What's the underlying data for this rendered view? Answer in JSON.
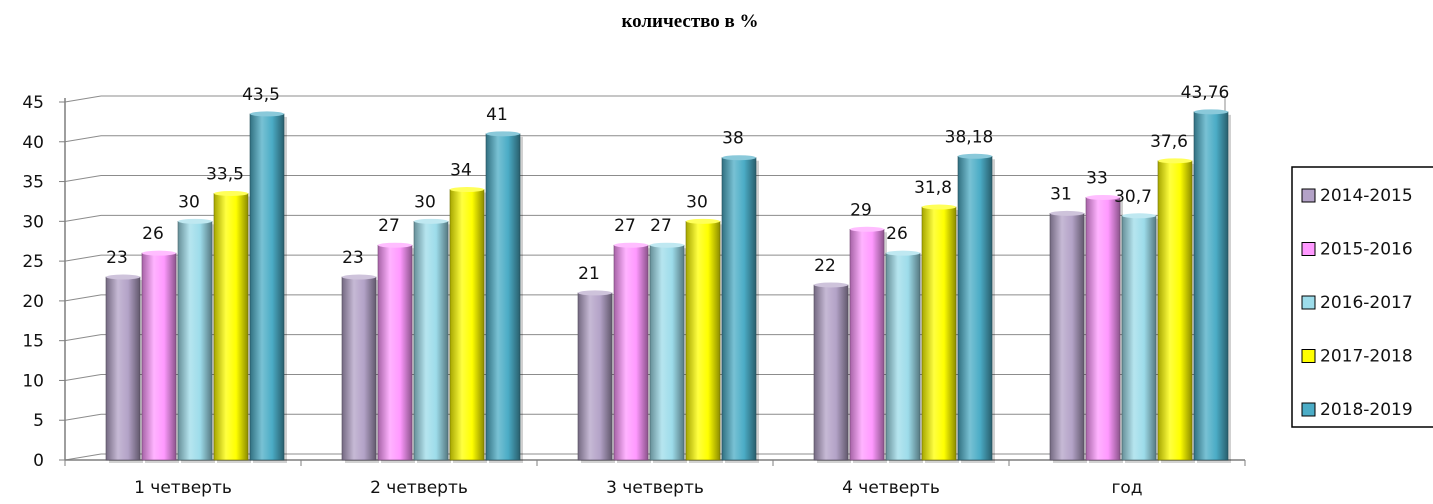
{
  "chart_data": {
    "type": "bar",
    "title": "количество в %",
    "categories": [
      "1 четверть",
      "2 четверть",
      "3 четверть",
      "4 четверть",
      "год"
    ],
    "ylim": [
      0,
      45
    ],
    "yticks": [
      0,
      5,
      10,
      15,
      20,
      25,
      30,
      35,
      40,
      45
    ],
    "grid": true,
    "legend_position": "right",
    "series": [
      {
        "name": "2014-2015",
        "color": "#b3a2c7",
        "values": [
          23,
          23,
          21,
          22,
          31
        ],
        "labels": [
          "23",
          "23",
          "21",
          "22",
          "31"
        ]
      },
      {
        "name": "2015-2016",
        "color": "#ff99ff",
        "values": [
          26,
          27,
          27,
          29,
          33
        ],
        "labels": [
          "26",
          "27",
          "27",
          "29",
          "33"
        ]
      },
      {
        "name": "2016-2017",
        "color": "#9ddcea",
        "values": [
          30,
          30,
          27,
          26,
          30.7
        ],
        "labels": [
          "30",
          "30",
          "27",
          "26",
          "30,7"
        ]
      },
      {
        "name": "2017-2018",
        "color": "#ffff00",
        "values": [
          33.5,
          34,
          30,
          31.8,
          37.6
        ],
        "labels": [
          "33,5",
          "34",
          "30",
          "31,8",
          "37,6"
        ]
      },
      {
        "name": "2018-2019",
        "color": "#4bacc6",
        "values": [
          43.5,
          41,
          38,
          38.18,
          43.76
        ],
        "labels": [
          "43,5",
          "41",
          "38",
          "38,18",
          "43,76"
        ]
      }
    ]
  }
}
